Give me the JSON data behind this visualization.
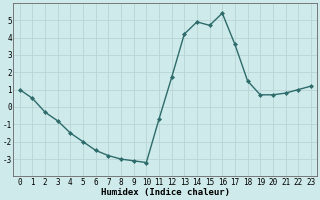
{
  "xlabel": "Humidex (Indice chaleur)",
  "x": [
    0,
    1,
    2,
    3,
    4,
    5,
    6,
    7,
    8,
    9,
    10,
    11,
    12,
    13,
    14,
    15,
    16,
    17,
    18,
    19,
    20,
    21,
    22,
    23
  ],
  "y": [
    1.0,
    0.5,
    -0.3,
    -0.8,
    -1.5,
    -2.0,
    -2.5,
    -2.8,
    -3.0,
    -3.1,
    -3.2,
    -0.7,
    1.7,
    4.2,
    4.9,
    4.7,
    5.4,
    3.6,
    1.5,
    0.7,
    0.7,
    0.8,
    1.0,
    1.2
  ],
  "line_color": "#2e6b6b",
  "marker": "D",
  "markersize": 2.0,
  "bg_color": "#ceeaea",
  "grid_color": "#b8d4d4",
  "ylim": [
    -4,
    6
  ],
  "yticks": [
    -3,
    -2,
    -1,
    0,
    1,
    2,
    3,
    4,
    5
  ],
  "xlim": [
    -0.5,
    23.5
  ],
  "linewidth": 1.0,
  "xlabel_fontsize": 6.5,
  "tick_fontsize": 5.5
}
